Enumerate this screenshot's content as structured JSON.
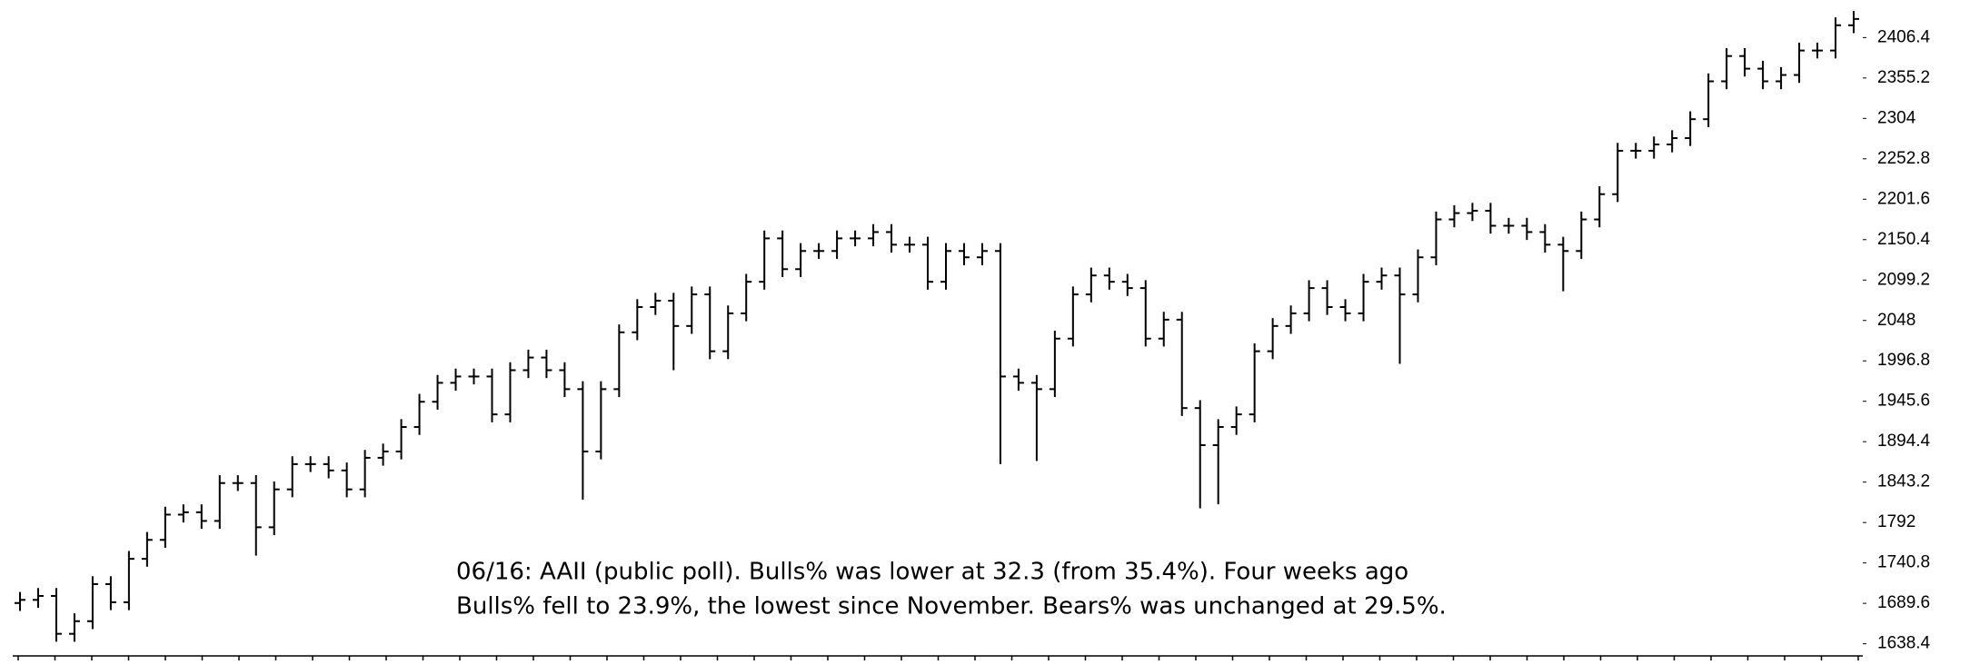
{
  "chart_data": {
    "type": "ohlc",
    "annotation": [
      "06/16: AAII (public poll). Bulls% was lower at 32.3 (from 35.4%). Four weeks ago",
      "Bulls% fell to 23.9%, the lowest since November. Bears% was unchanged at 29.5%."
    ],
    "color": "#000000",
    "ylim": [
      1623,
      2454
    ],
    "yticks": [
      1638.4,
      1689.6,
      1740.8,
      1792,
      1843.2,
      1894.4,
      1945.6,
      1996.8,
      2048,
      2099.2,
      2150.4,
      2201.6,
      2252.8,
      2304,
      2355.2,
      2406.4
    ],
    "open": [
      1690,
      1694,
      1699,
      1651,
      1667,
      1714,
      1691,
      1746,
      1770,
      1802,
      1805,
      1794,
      1842,
      1842,
      1786,
      1834,
      1866,
      1866,
      1858,
      1834,
      1874,
      1882,
      1913,
      1945,
      1969,
      1977,
      1977,
      1929,
      1985,
      2001,
      1985,
      1961,
      1882,
      1961,
      2033,
      2065,
      2073,
      2041,
      2081,
      2009,
      2057,
      2097,
      2152,
      2113,
      2136,
      2136,
      2152,
      2152,
      2160,
      2144,
      2144,
      2097,
      2136,
      2128,
      2136,
      1977,
      1969,
      1961,
      2025,
      2081,
      2105,
      2097,
      2089,
      2025,
      2049,
      1937,
      1890,
      1913,
      1929,
      2009,
      2041,
      2057,
      2089,
      2065,
      2057,
      2097,
      2105,
      2081,
      2128,
      2176,
      2184,
      2187,
      2168,
      2168,
      2160,
      2144,
      2136,
      2176,
      2208,
      2263,
      2263,
      2271,
      2279,
      2303,
      2351,
      2383,
      2367,
      2351,
      2359,
      2390,
      2390,
      2422
    ],
    "high": [
      1704,
      1709,
      1709,
      1677,
      1724,
      1724,
      1756,
      1780,
      1812,
      1815,
      1815,
      1852,
      1852,
      1852,
      1844,
      1876,
      1876,
      1876,
      1868,
      1884,
      1892,
      1923,
      1955,
      1979,
      1987,
      1987,
      1987,
      1995,
      2011,
      2011,
      1995,
      1971,
      1971,
      2043,
      2075,
      2083,
      2083,
      2091,
      2091,
      2067,
      2107,
      2162,
      2162,
      2146,
      2146,
      2162,
      2162,
      2170,
      2170,
      2154,
      2154,
      2146,
      2146,
      2146,
      2146,
      1987,
      1979,
      2035,
      2091,
      2115,
      2115,
      2107,
      2099,
      2059,
      2059,
      1947,
      1923,
      1939,
      2019,
      2051,
      2067,
      2099,
      2099,
      2075,
      2107,
      2115,
      2115,
      2138,
      2186,
      2194,
      2197,
      2197,
      2178,
      2178,
      2170,
      2154,
      2186,
      2218,
      2273,
      2273,
      2281,
      2289,
      2313,
      2361,
      2393,
      2393,
      2377,
      2369,
      2400,
      2400,
      2432,
      2440
    ],
    "low": [
      1680,
      1684,
      1641,
      1641,
      1657,
      1681,
      1681,
      1736,
      1760,
      1792,
      1784,
      1784,
      1832,
      1750,
      1776,
      1824,
      1856,
      1848,
      1824,
      1824,
      1864,
      1872,
      1903,
      1935,
      1959,
      1967,
      1919,
      1919,
      1975,
      1975,
      1951,
      1821,
      1872,
      1951,
      2023,
      2055,
      1985,
      2031,
      1999,
      1999,
      2047,
      2087,
      2103,
      2103,
      2126,
      2126,
      2142,
      2142,
      2134,
      2134,
      2087,
      2087,
      2118,
      2118,
      1866,
      1959,
      1870,
      1951,
      2015,
      2071,
      2087,
      2079,
      2015,
      2015,
      1927,
      1810,
      1815,
      1903,
      1919,
      1999,
      2031,
      2047,
      2055,
      2047,
      2047,
      2087,
      1993,
      2071,
      2118,
      2166,
      2174,
      2158,
      2158,
      2150,
      2134,
      2085,
      2126,
      2166,
      2198,
      2253,
      2253,
      2261,
      2269,
      2293,
      2341,
      2357,
      2341,
      2341,
      2349,
      2380,
      2380,
      2412
    ],
    "close": [
      1694,
      1699,
      1651,
      1667,
      1714,
      1691,
      1746,
      1770,
      1802,
      1805,
      1794,
      1842,
      1842,
      1786,
      1834,
      1866,
      1866,
      1858,
      1834,
      1874,
      1882,
      1913,
      1945,
      1969,
      1977,
      1977,
      1929,
      1985,
      2001,
      1985,
      1961,
      1882,
      1961,
      2033,
      2065,
      2073,
      2041,
      2081,
      2009,
      2057,
      2097,
      2152,
      2113,
      2136,
      2136,
      2152,
      2152,
      2160,
      2144,
      2144,
      2097,
      2136,
      2128,
      2136,
      1977,
      1969,
      1961,
      2025,
      2081,
      2105,
      2097,
      2089,
      2025,
      2049,
      1937,
      1890,
      1913,
      1929,
      2009,
      2041,
      2057,
      2089,
      2065,
      2057,
      2097,
      2105,
      2081,
      2128,
      2176,
      2184,
      2187,
      2168,
      2168,
      2160,
      2144,
      2136,
      2176,
      2208,
      2263,
      2263,
      2271,
      2279,
      2303,
      2351,
      2383,
      2367,
      2351,
      2359,
      2390,
      2390,
      2422,
      2430
    ]
  }
}
